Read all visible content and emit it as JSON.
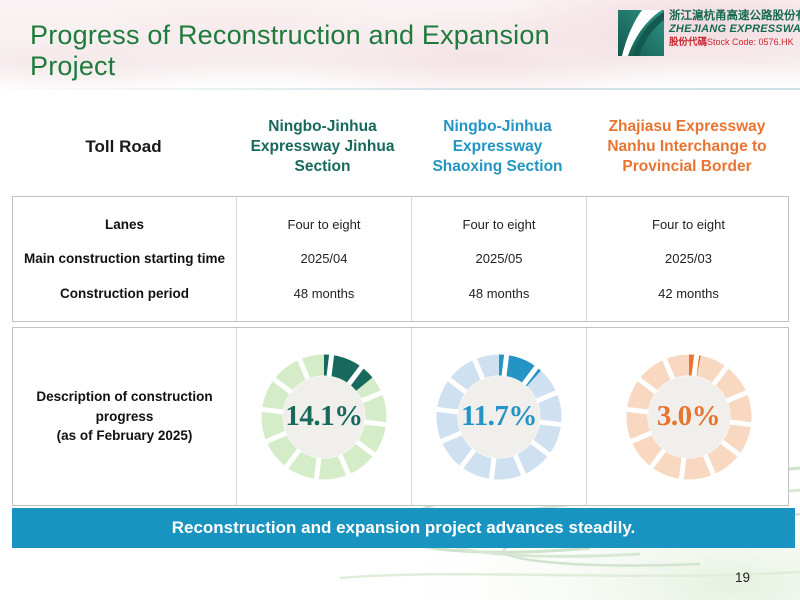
{
  "slide": {
    "title": "Progress of Reconstruction and Expansion Project",
    "banner_text": "Reconstruction and expansion project advances steadily.",
    "page_number": "19",
    "colors": {
      "title_green": "#1e7b3c",
      "banner_bg": "#1993bf",
      "stock_red": "#c9282d"
    }
  },
  "logo": {
    "company_name_cn": "浙江滬杭甬高速公路股份有限公司",
    "company_name_en": "ZHEJIANG EXPRESSWAY CO., LTD.",
    "stock_label_cn": "股份代碼",
    "stock_code": "Stock Code: 0576.HK"
  },
  "table": {
    "corner_label": "Toll Road",
    "column_headers": [
      {
        "label": "Ningbo-Jinhua Expressway Jinhua Section",
        "color": "#17695c"
      },
      {
        "label": "Ningbo-Jinhua Expressway Shaoxing Section",
        "color": "#2394c4"
      },
      {
        "label": "Zhajiasu Expressway Nanhu Interchange to Provincial Border",
        "color": "#e8742f"
      }
    ],
    "rows": [
      {
        "label": "Lanes",
        "values": [
          "Four to eight",
          "Four to eight",
          "Four to eight"
        ]
      },
      {
        "label": "Main construction starting time",
        "values": [
          "2025/04",
          "2025/05",
          "2025/03"
        ]
      },
      {
        "label": "Construction period",
        "values": [
          "48 months",
          "48 months",
          "42 months"
        ]
      }
    ],
    "progress_label_line1": "Description of construction progress",
    "progress_label_line2": "(as of February 2025)"
  },
  "chart_data": [
    {
      "type": "donut",
      "title": "Ningbo-Jinhua Expressway Jinhua Section construction progress",
      "value": 14.1,
      "value_label": "14.1%",
      "max": 100,
      "color": "#17695c",
      "track_color": "#d5ecc8",
      "center_color": "#f0efec"
    },
    {
      "type": "donut",
      "title": "Ningbo-Jinhua Expressway Shaoxing Section construction progress",
      "value": 11.7,
      "value_label": "11.7%",
      "max": 100,
      "color": "#2394c4",
      "track_color": "#cfe0f1",
      "center_color": "#f0efec"
    },
    {
      "type": "donut",
      "title": "Zhajiasu Expressway Nanhu Interchange to Provincial Border construction progress",
      "value": 3.0,
      "value_label": "3.0%",
      "max": 100,
      "color": "#e8742f",
      "track_color": "#f8d8c0",
      "center_color": "#f0efec"
    }
  ]
}
